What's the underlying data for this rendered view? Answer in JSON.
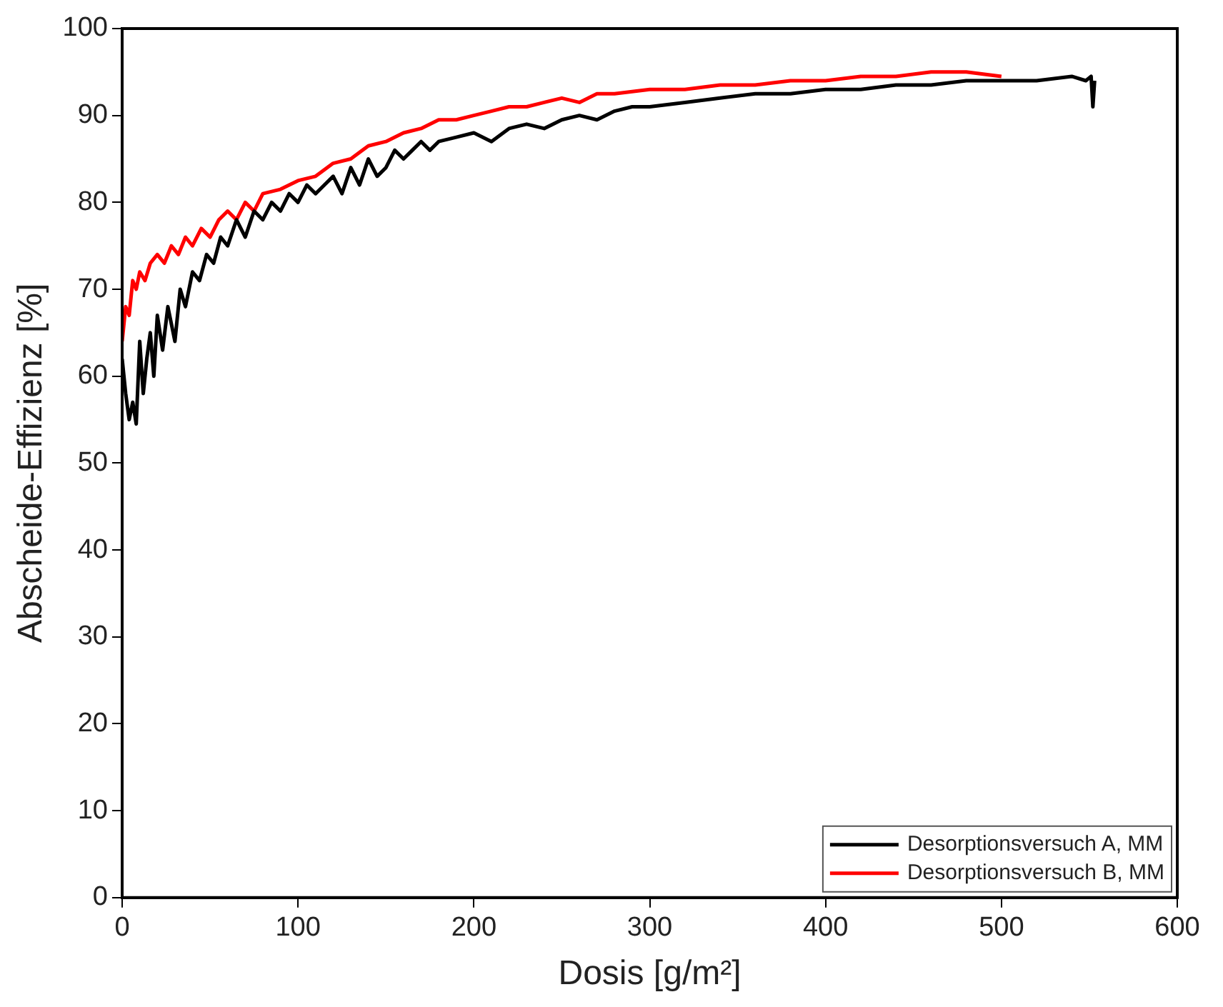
{
  "chart_data": {
    "type": "line",
    "xlabel": "Dosis [g/m²]",
    "ylabel": "Abscheide-Effizienz [%]",
    "xlim": [
      0,
      600
    ],
    "xticks": [
      0,
      100,
      200,
      300,
      400,
      500,
      600
    ],
    "ylim": [
      0,
      100
    ],
    "yticks": [
      0,
      10,
      20,
      30,
      40,
      50,
      60,
      70,
      80,
      90,
      100
    ],
    "grid": false,
    "legend": "bottom right",
    "marker": "none",
    "line_style": "solid",
    "series": [
      {
        "name": "Desorptionsversuch A, MM",
        "color": "#000000",
        "x": [
          0,
          2,
          4,
          6,
          8,
          10,
          12,
          14,
          16,
          18,
          20,
          23,
          26,
          30,
          33,
          36,
          40,
          44,
          48,
          52,
          56,
          60,
          65,
          70,
          75,
          80,
          85,
          90,
          95,
          100,
          105,
          110,
          115,
          120,
          125,
          130,
          135,
          140,
          145,
          150,
          155,
          160,
          165,
          170,
          175,
          180,
          190,
          200,
          210,
          220,
          230,
          240,
          250,
          260,
          270,
          280,
          290,
          300,
          320,
          340,
          360,
          380,
          400,
          420,
          440,
          460,
          480,
          500,
          520,
          540,
          548,
          551,
          552,
          553
        ],
        "values": [
          62,
          58,
          55,
          57,
          54.5,
          64,
          58,
          62,
          65,
          60,
          67,
          63,
          68,
          64,
          70,
          68,
          72,
          71,
          74,
          73,
          76,
          75,
          78,
          76,
          79,
          78,
          80,
          79,
          81,
          80,
          82,
          81,
          82,
          83,
          81,
          84,
          82,
          85,
          83,
          84,
          86,
          85,
          86,
          87,
          86,
          87,
          87.5,
          88,
          87,
          88.5,
          89,
          88.5,
          89.5,
          90,
          89.5,
          90.5,
          91,
          91,
          91.5,
          92,
          92.5,
          92.5,
          93,
          93,
          93.5,
          93.5,
          94,
          94,
          94,
          94.5,
          94,
          94.5,
          91,
          94
        ]
      },
      {
        "name": "Desorptionsversuch B, MM",
        "color": "#ff0000",
        "x": [
          0,
          2,
          4,
          6,
          8,
          10,
          13,
          16,
          20,
          24,
          28,
          32,
          36,
          40,
          45,
          50,
          55,
          60,
          65,
          70,
          75,
          80,
          90,
          100,
          110,
          120,
          130,
          140,
          150,
          160,
          170,
          180,
          190,
          200,
          210,
          220,
          230,
          240,
          250,
          260,
          270,
          280,
          300,
          320,
          340,
          360,
          380,
          400,
          420,
          440,
          460,
          480,
          500
        ],
        "values": [
          64,
          68,
          67,
          71,
          70,
          72,
          71,
          73,
          74,
          73,
          75,
          74,
          76,
          75,
          77,
          76,
          78,
          79,
          78,
          80,
          79,
          81,
          81.5,
          82.5,
          83,
          84.5,
          85,
          86.5,
          87,
          88,
          88.5,
          89.5,
          89.5,
          90,
          90.5,
          91,
          91,
          91.5,
          92,
          91.5,
          92.5,
          92.5,
          93,
          93,
          93.5,
          93.5,
          94,
          94,
          94.5,
          94.5,
          95,
          95,
          94.5
        ]
      }
    ]
  }
}
